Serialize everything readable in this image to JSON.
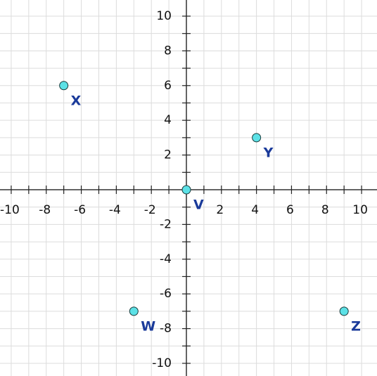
{
  "chart_data": {
    "type": "scatter",
    "x": [
      -7,
      4,
      0,
      -3,
      9
    ],
    "values": [
      6,
      3,
      0,
      -7,
      -7
    ],
    "labels": [
      "X",
      "Y",
      "V",
      "W",
      "Z"
    ],
    "color": "#5ce1e6",
    "label_color": "#1a3a9a",
    "xlim": [
      -10.64,
      10.88
    ],
    "ylim": [
      -10.73,
      10.93
    ],
    "xticks": [
      -10,
      -8,
      -6,
      -4,
      -2,
      2,
      4,
      6,
      8,
      10
    ],
    "yticks": [
      -10,
      -8,
      -6,
      -4,
      -2,
      2,
      4,
      6,
      8,
      10
    ],
    "minor_xticks": [
      -9,
      -7,
      -5,
      -3,
      -1,
      1,
      3,
      5,
      7,
      9
    ],
    "minor_yticks": [
      -9,
      -7,
      -5,
      -3,
      -1,
      1,
      3,
      5,
      7,
      9
    ],
    "grid": true
  }
}
